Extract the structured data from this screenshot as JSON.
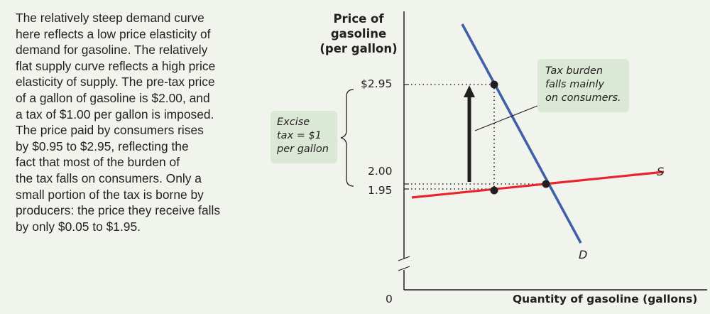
{
  "description": {
    "lines": [
      "The relatively steep demand curve",
      "here reflects a low price elasticity of",
      "demand for gasoline. The relatively",
      "flat supply curve reflects a high price",
      "elasticity of supply. The pre-tax price",
      "of a gallon of gasoline is $2.00, and",
      "a tax of $1.00 per gallon is imposed.",
      "The price paid by consumers rises",
      "by $0.95 to $2.95, reflecting the",
      "fact that most of the burden of",
      "the tax falls on consumers. Only a",
      "small portion of the tax is borne by",
      "producers: the price they receive falls",
      "by only $0.05 to $1.95."
    ]
  },
  "graph": {
    "y_axis_title": [
      "Price of",
      "gasoline",
      "(per gallon)"
    ],
    "x_axis_title": "Quantity of gasoline (gallons)",
    "origin_label": "0",
    "y_ticks": {
      "consumer_price": "$2.95",
      "pretax_price": "2.00",
      "producer_price": "1.95"
    },
    "tax_bracket_label": [
      "Excise",
      "tax = $1",
      "per gallon"
    ],
    "callout": [
      "Tax burden",
      "falls mainly",
      "on consumers."
    ],
    "supply_label": "S",
    "demand_label": "D",
    "colors": {
      "demand": "#3f5fa8",
      "supply": "#e8242d",
      "box": "#dce8d6",
      "arrow": "#231f20"
    }
  }
}
